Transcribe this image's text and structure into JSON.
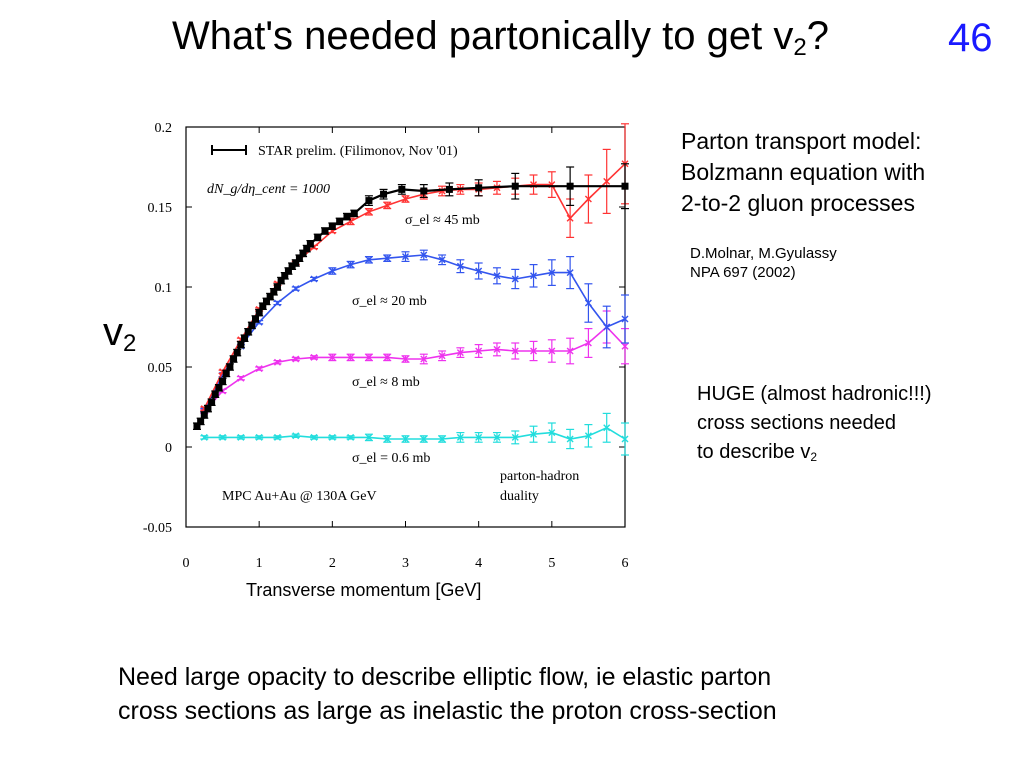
{
  "title": {
    "text": "What's needed partonically to get v",
    "sub": "2",
    "end": "?"
  },
  "slide_number": "46",
  "side_note": {
    "lines": [
      "Parton transport model:",
      "Bolzmann equation with",
      "2-to-2 gluon processes"
    ]
  },
  "reference": {
    "lines": [
      "D.Molnar, M.Gyulassy",
      "NPA 697 (2002)"
    ]
  },
  "huge_note": {
    "lines": [
      "HUGE (almost hadronic!!!)",
      "cross sections needed"
    ],
    "last": "to describe v",
    "last_sub": "2"
  },
  "bottom_text": {
    "lines": [
      "Need large opacity to describe elliptic flow, ie elastic parton",
      "cross sections as large as inelastic the proton cross-section"
    ]
  },
  "chart_data": {
    "type": "line",
    "xlabel": "Transverse momentum [GeV]",
    "ylabel": {
      "text": "v",
      "sub": "2"
    },
    "xlim": [
      0,
      6
    ],
    "ylim": [
      -0.05,
      0.2
    ],
    "xticks": [
      "0",
      "1",
      "2",
      "3",
      "4",
      "5",
      "6"
    ],
    "yticks": [
      "-0.05",
      "0",
      "0.05",
      "0.1",
      "0.15",
      "0.2"
    ],
    "annotations": {
      "legend_star": "STAR prelim. (Filimonov, Nov '01)",
      "dndeta": "dN_g/dη_cent = 1000",
      "mpc": "MPC Au+Au @ 130A GeV",
      "duality_1": "parton-hadron",
      "duality_2": "duality",
      "sigma_45": "σ_el ≈ 45 mb",
      "sigma_20": "σ_el ≈ 20 mb",
      "sigma_8": "σ_el ≈ 8 mb",
      "sigma_06": "σ_el = 0.6 mb"
    },
    "series": [
      {
        "name": "STAR prelim. (Filimonov, Nov '01)",
        "color": "#000000",
        "style": "data",
        "x": [
          0.15,
          0.2,
          0.25,
          0.3,
          0.35,
          0.4,
          0.45,
          0.5,
          0.55,
          0.6,
          0.65,
          0.7,
          0.75,
          0.8,
          0.85,
          0.9,
          0.95,
          1.0,
          1.05,
          1.1,
          1.15,
          1.2,
          1.25,
          1.3,
          1.35,
          1.4,
          1.45,
          1.5,
          1.55,
          1.6,
          1.65,
          1.7,
          1.8,
          1.9,
          2.0,
          2.1,
          2.2,
          2.3,
          2.5,
          2.7,
          2.95,
          3.25,
          3.6,
          4.0,
          4.5,
          5.25,
          6.0
        ],
        "y": [
          0.013,
          0.016,
          0.02,
          0.024,
          0.028,
          0.033,
          0.037,
          0.041,
          0.046,
          0.05,
          0.055,
          0.059,
          0.064,
          0.068,
          0.072,
          0.076,
          0.08,
          0.084,
          0.088,
          0.091,
          0.094,
          0.097,
          0.1,
          0.104,
          0.107,
          0.11,
          0.113,
          0.115,
          0.118,
          0.121,
          0.124,
          0.127,
          0.131,
          0.135,
          0.138,
          0.141,
          0.144,
          0.146,
          0.154,
          0.158,
          0.161,
          0.16,
          0.161,
          0.162,
          0.163,
          0.163,
          0.163
        ],
        "yerr": [
          0.002,
          0.002,
          0.002,
          0.002,
          0.002,
          0.002,
          0.002,
          0.002,
          0.002,
          0.002,
          0.002,
          0.002,
          0.002,
          0.002,
          0.002,
          0.002,
          0.002,
          0.002,
          0.002,
          0.002,
          0.002,
          0.002,
          0.002,
          0.002,
          0.002,
          0.002,
          0.002,
          0.002,
          0.002,
          0.002,
          0.002,
          0.002,
          0.002,
          0.002,
          0.002,
          0.002,
          0.002,
          0.002,
          0.003,
          0.003,
          0.003,
          0.004,
          0.004,
          0.005,
          0.008,
          0.012,
          0.014
        ]
      },
      {
        "name": "σ_el ≈ 45 mb",
        "color": "#ff3333",
        "style": "model",
        "x": [
          0.25,
          0.5,
          0.75,
          1.0,
          1.25,
          1.5,
          1.75,
          2.0,
          2.25,
          2.5,
          2.75,
          3.0,
          3.25,
          3.5,
          3.75,
          4.0,
          4.25,
          4.5,
          4.75,
          5.0,
          5.25,
          5.5,
          5.75,
          6.0
        ],
        "y": [
          0.024,
          0.047,
          0.067,
          0.086,
          0.102,
          0.115,
          0.125,
          0.135,
          0.141,
          0.147,
          0.151,
          0.155,
          0.158,
          0.16,
          0.161,
          0.161,
          0.162,
          0.163,
          0.164,
          0.164,
          0.143,
          0.155,
          0.166,
          0.177
        ],
        "yerr": [
          0.001,
          0.001,
          0.001,
          0.001,
          0.001,
          0.001,
          0.001,
          0.001,
          0.002,
          0.002,
          0.002,
          0.002,
          0.003,
          0.003,
          0.003,
          0.004,
          0.004,
          0.005,
          0.006,
          0.008,
          0.012,
          0.015,
          0.02,
          0.025
        ]
      },
      {
        "name": "σ_el ≈ 20 mb",
        "color": "#3355ee",
        "style": "model",
        "x": [
          0.25,
          0.5,
          0.75,
          1.0,
          1.25,
          1.5,
          1.75,
          2.0,
          2.25,
          2.5,
          2.75,
          3.0,
          3.25,
          3.5,
          3.75,
          4.0,
          4.25,
          4.5,
          4.75,
          5.0,
          5.25,
          5.5,
          5.75,
          6.0
        ],
        "y": [
          0.023,
          0.045,
          0.063,
          0.078,
          0.09,
          0.099,
          0.105,
          0.11,
          0.114,
          0.117,
          0.118,
          0.119,
          0.12,
          0.117,
          0.113,
          0.11,
          0.107,
          0.105,
          0.107,
          0.109,
          0.109,
          0.09,
          0.075,
          0.08
        ],
        "yerr": [
          0.001,
          0.001,
          0.001,
          0.001,
          0.001,
          0.001,
          0.001,
          0.002,
          0.002,
          0.002,
          0.002,
          0.003,
          0.003,
          0.003,
          0.004,
          0.005,
          0.005,
          0.006,
          0.007,
          0.008,
          0.01,
          0.012,
          0.013,
          0.015
        ]
      },
      {
        "name": "σ_el ≈ 8 mb",
        "color": "#ee33ee",
        "style": "model",
        "x": [
          0.25,
          0.5,
          0.75,
          1.0,
          1.25,
          1.5,
          1.75,
          2.0,
          2.25,
          2.5,
          2.75,
          3.0,
          3.25,
          3.5,
          3.75,
          4.0,
          4.25,
          4.5,
          4.75,
          5.0,
          5.25,
          5.5,
          5.75,
          6.0
        ],
        "y": [
          0.022,
          0.035,
          0.043,
          0.049,
          0.053,
          0.055,
          0.056,
          0.056,
          0.056,
          0.056,
          0.056,
          0.055,
          0.055,
          0.057,
          0.059,
          0.06,
          0.061,
          0.06,
          0.06,
          0.06,
          0.06,
          0.065,
          0.075,
          0.063
        ],
        "yerr": [
          0.001,
          0.001,
          0.001,
          0.001,
          0.001,
          0.001,
          0.001,
          0.002,
          0.002,
          0.002,
          0.002,
          0.002,
          0.003,
          0.003,
          0.003,
          0.004,
          0.004,
          0.005,
          0.006,
          0.007,
          0.008,
          0.009,
          0.01,
          0.011
        ]
      },
      {
        "name": "σ_el = 0.6 mb",
        "color": "#22dddd",
        "style": "model",
        "x": [
          0.25,
          0.5,
          0.75,
          1.0,
          1.25,
          1.5,
          1.75,
          2.0,
          2.25,
          2.5,
          2.75,
          3.0,
          3.25,
          3.5,
          3.75,
          4.0,
          4.25,
          4.5,
          4.75,
          5.0,
          5.25,
          5.5,
          5.75,
          6.0
        ],
        "y": [
          0.006,
          0.006,
          0.006,
          0.006,
          0.006,
          0.007,
          0.006,
          0.006,
          0.006,
          0.006,
          0.005,
          0.005,
          0.005,
          0.005,
          0.006,
          0.006,
          0.006,
          0.006,
          0.008,
          0.009,
          0.005,
          0.007,
          0.012,
          0.005
        ],
        "yerr": [
          0.001,
          0.001,
          0.001,
          0.001,
          0.001,
          0.001,
          0.001,
          0.001,
          0.001,
          0.002,
          0.002,
          0.002,
          0.002,
          0.002,
          0.003,
          0.003,
          0.003,
          0.004,
          0.005,
          0.006,
          0.006,
          0.007,
          0.009,
          0.01
        ]
      }
    ]
  }
}
